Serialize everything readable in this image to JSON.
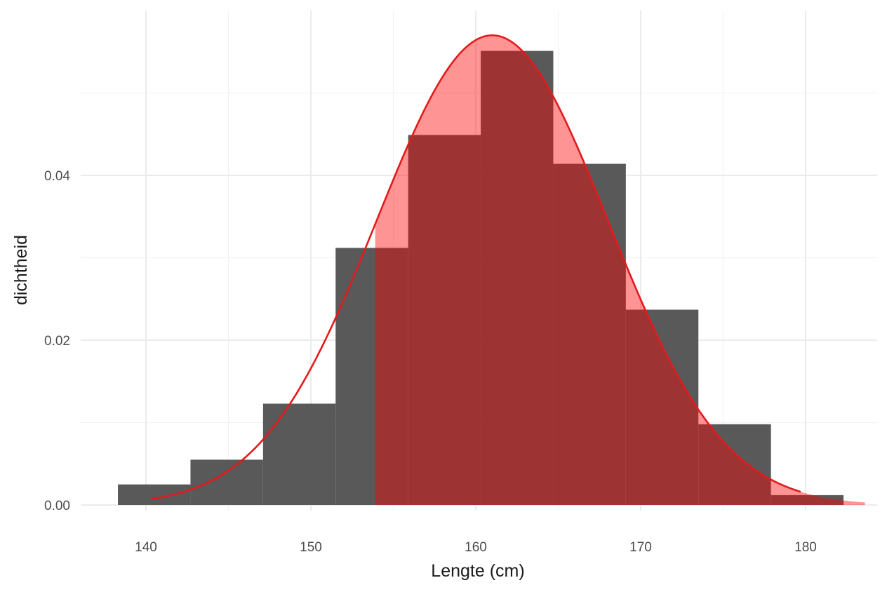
{
  "chart_data": {
    "type": "bar",
    "subtype": "histogram with normal density overlay and shaded area",
    "title": "",
    "xlabel": "Lengte (cm)",
    "ylabel": "dichtheid",
    "xlim": [
      136.5,
      184.5
    ],
    "ylim": [
      -0.0005,
      0.0598
    ],
    "x_ticks": [
      140,
      150,
      160,
      170,
      180
    ],
    "x_tick_labels": [
      "140",
      "150",
      "160",
      "170",
      "180"
    ],
    "y_ticks": [
      0.0,
      0.02,
      0.04
    ],
    "y_tick_labels": [
      "0.00",
      "0.02",
      "0.04"
    ],
    "grid": true,
    "legend": null,
    "histogram": {
      "bin_edges": [
        138.3,
        142.7,
        147.1,
        151.5,
        155.9,
        160.3,
        164.7,
        169.1,
        173.5,
        177.9,
        182.3
      ],
      "densities": [
        0.0025,
        0.0055,
        0.0123,
        0.0312,
        0.0449,
        0.0551,
        0.0414,
        0.0237,
        0.0098,
        0.0012
      ],
      "color": "#595959"
    },
    "normal_curve": {
      "mean": 161.0,
      "sd": 7.0,
      "x_range": [
        140.3,
        179.7
      ],
      "color": "#e31a1c"
    },
    "shaded_area": {
      "from": 153.9,
      "to": 183.6,
      "fill": "#ff0000",
      "opacity": 0.42
    }
  },
  "axes": {
    "x_title": "Lengte (cm)",
    "y_title": "dichtheid",
    "x_ticks": [
      "140",
      "150",
      "160",
      "170",
      "180"
    ],
    "y_ticks": [
      "0.00",
      "0.02",
      "0.04"
    ]
  }
}
